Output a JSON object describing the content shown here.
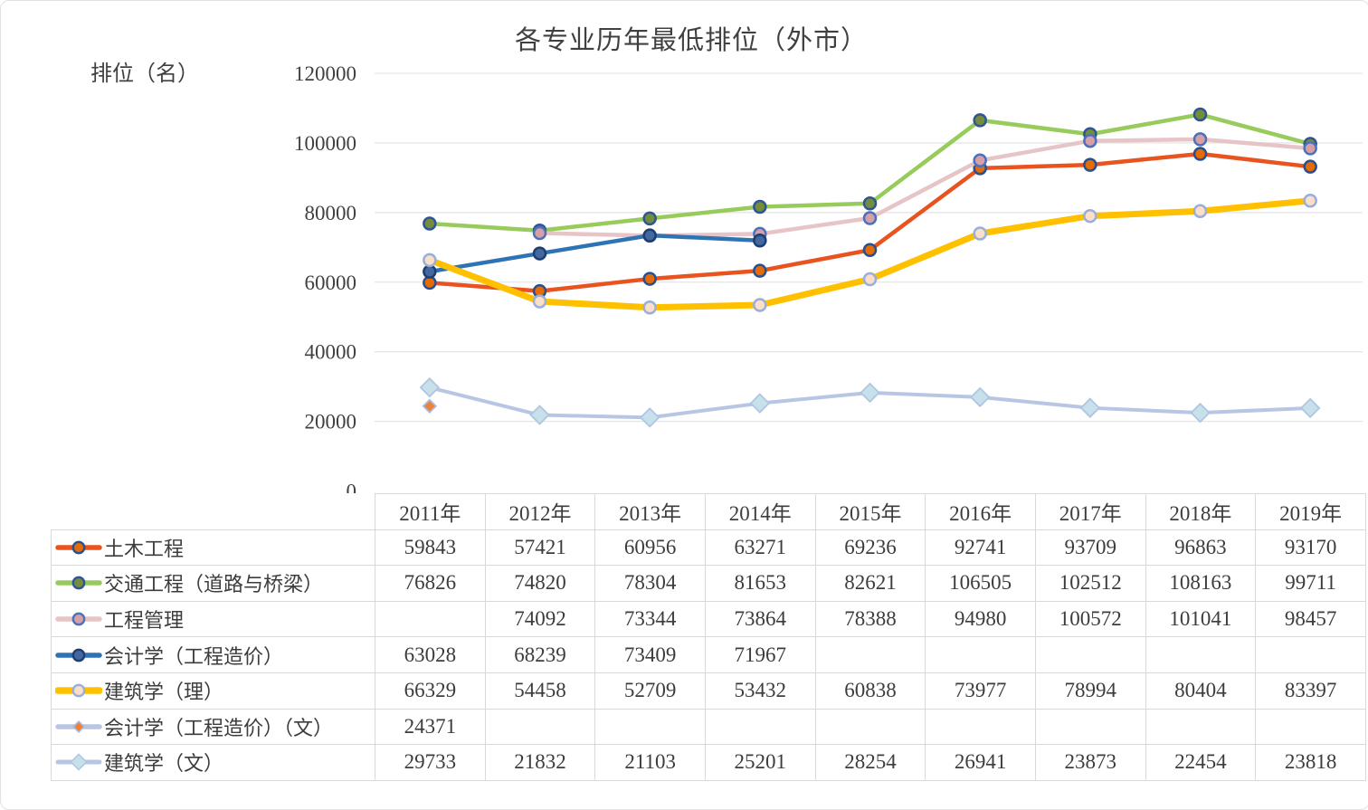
{
  "chart_data": {
    "type": "line",
    "title": "各专业历年最低排位（外市）",
    "ylabel": "排位（名）",
    "categories": [
      "2011年",
      "2012年",
      "2013年",
      "2014年",
      "2015年",
      "2016年",
      "2017年",
      "2018年",
      "2019年"
    ],
    "ylim": [
      0,
      120000
    ],
    "yticks": [
      0,
      20000,
      40000,
      60000,
      80000,
      100000,
      120000
    ],
    "grid": true,
    "legend_position": "table-left-column",
    "gridline_color": "#e6e6e6",
    "axis_text_color": "#404040",
    "table_border_color": "#d9d9d9",
    "series": [
      {
        "name": "土木工程",
        "values": [
          59843,
          57421,
          60956,
          63271,
          69236,
          92741,
          93709,
          96863,
          93170
        ],
        "line_color": "#E8531F",
        "line_width": 4.5,
        "marker": "circle",
        "marker_fill": "#E36C09",
        "marker_stroke": "#2B4F8E"
      },
      {
        "name": "交通工程（道路与桥梁）",
        "values": [
          76826,
          74820,
          78304,
          81653,
          82621,
          106505,
          102512,
          108163,
          99711
        ],
        "line_color": "#97CB5C",
        "line_width": 4.5,
        "marker": "circle",
        "marker_fill": "#748D3B",
        "marker_stroke": "#2F5596"
      },
      {
        "name": "工程管理",
        "values": [
          null,
          74092,
          73344,
          73864,
          78388,
          94980,
          100572,
          101041,
          98457
        ],
        "line_color": "#E7C4C6",
        "line_width": 4.5,
        "marker": "circle",
        "marker_fill": "#D79FA6",
        "marker_stroke": "#4A72BC"
      },
      {
        "name": "会计学（工程造价）",
        "values": [
          63028,
          68239,
          73409,
          71967,
          null,
          null,
          null,
          null,
          null
        ],
        "line_color": "#2E74B5",
        "line_width": 4.5,
        "marker": "circle",
        "marker_fill": "#42689F",
        "marker_stroke": "#1F3E70"
      },
      {
        "name": "建筑学（理）",
        "values": [
          66329,
          54458,
          52709,
          53432,
          60838,
          73977,
          78994,
          80404,
          83397
        ],
        "line_color": "#FFC000",
        "line_width": 7,
        "marker": "circle",
        "marker_fill": "#FBDFC9",
        "marker_stroke": "#98AFDC"
      },
      {
        "name": "会计学（工程造价）（文）",
        "values": [
          24371,
          null,
          null,
          null,
          null,
          null,
          null,
          null,
          null
        ],
        "line_color": "#B7C6E3",
        "line_width": 4.5,
        "marker": "diamond",
        "marker_size": 7,
        "marker_fill": "#EE8139",
        "marker_stroke": "#AABCE0"
      },
      {
        "name": "建筑学（文）",
        "values": [
          29733,
          21832,
          21103,
          25201,
          28254,
          26941,
          23873,
          22454,
          23818
        ],
        "line_color": "#B7C6E3",
        "line_width": 4,
        "marker": "diamond",
        "marker_size": 10,
        "marker_fill": "#C8E0EA",
        "marker_stroke": "#AEC6E4"
      }
    ]
  }
}
